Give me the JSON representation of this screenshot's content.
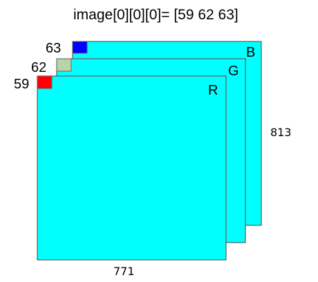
{
  "title": "image[0][0][0]= [59 62 63]",
  "dimensions": {
    "width_label": "771",
    "height_label": "813"
  },
  "plane_color": "#00FFFF",
  "channels": {
    "b": {
      "label": "B",
      "value": "63",
      "pixel_color": "#0000FF"
    },
    "g": {
      "label": "G",
      "value": "62",
      "pixel_color": "#B7D3A8"
    },
    "r": {
      "label": "R",
      "value": "59",
      "pixel_color": "#FF0000"
    }
  }
}
